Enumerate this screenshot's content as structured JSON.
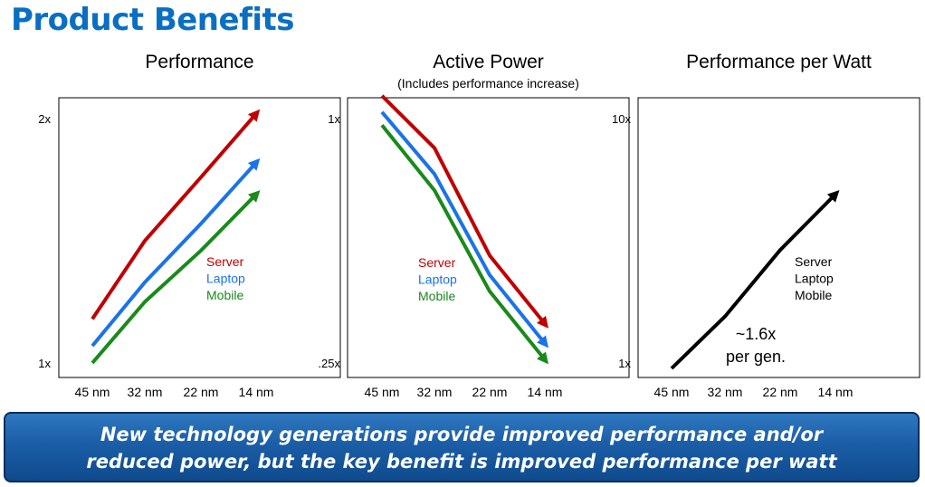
{
  "title": "Product Benefits",
  "callout": {
    "line1": "New technology generations provide improved performance and/or",
    "line2": "reduced power, but the key benefit is improved performance per watt"
  },
  "colors": {
    "server": "#c00000",
    "laptop": "#1a73e8",
    "mobile": "#1a8a1a",
    "single": "#000000",
    "title": "#0a6fc2"
  },
  "chart_data": [
    {
      "type": "line",
      "title": "Performance",
      "subtitle": "",
      "categories": [
        "45 nm",
        "32 nm",
        "22 nm",
        "14 nm"
      ],
      "ylim": [
        1,
        2
      ],
      "ytick_labels": [
        "2x",
        "1x"
      ],
      "grid": false,
      "legend": [
        "Server",
        "Laptop",
        "Mobile"
      ],
      "series": [
        {
          "name": "Server",
          "color": "#c00000",
          "values": [
            1.18,
            1.5,
            1.76,
            2.02
          ]
        },
        {
          "name": "Laptop",
          "color": "#1a73e8",
          "values": [
            1.07,
            1.33,
            1.57,
            1.82
          ]
        },
        {
          "name": "Mobile",
          "color": "#1a8a1a",
          "values": [
            1.0,
            1.25,
            1.46,
            1.69
          ]
        }
      ]
    },
    {
      "type": "line",
      "title": "Active Power",
      "subtitle": "(Includes performance increase)",
      "categories": [
        "45 nm",
        "32 nm",
        "22 nm",
        "14 nm"
      ],
      "ylim": [
        0.25,
        1
      ],
      "ytick_labels": [
        "1x",
        ".25x"
      ],
      "grid": false,
      "legend": [
        "Server",
        "Laptop",
        "Mobile"
      ],
      "series": [
        {
          "name": "Server",
          "color": "#c00000",
          "values": [
            1.07,
            0.91,
            0.58,
            0.37
          ]
        },
        {
          "name": "Laptop",
          "color": "#1a73e8",
          "values": [
            1.02,
            0.83,
            0.52,
            0.31
          ]
        },
        {
          "name": "Mobile",
          "color": "#1a8a1a",
          "values": [
            0.98,
            0.78,
            0.47,
            0.26
          ]
        }
      ]
    },
    {
      "type": "line",
      "title": "Performance per Watt",
      "subtitle": "",
      "categories": [
        "45 nm",
        "32 nm",
        "22 nm",
        "14 nm"
      ],
      "ylim": [
        1,
        10
      ],
      "ytick_labels": [
        "10x",
        "1x"
      ],
      "grid": false,
      "legend": [
        "Server",
        "Laptop",
        "Mobile"
      ],
      "annotation": [
        "~1.6x",
        "per gen."
      ],
      "series": [
        {
          "color": "#000000",
          "values": [
            0.95,
            1.55,
            2.9,
            4.9
          ]
        }
      ]
    }
  ]
}
